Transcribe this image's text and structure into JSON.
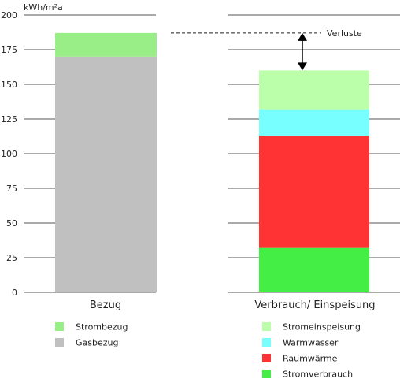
{
  "chart_data": {
    "type": "bar",
    "stacked": true,
    "ylabel": "kWh/m²a",
    "ylim": [
      0,
      200
    ],
    "yticks": [
      0,
      25,
      50,
      75,
      100,
      125,
      150,
      175,
      200
    ],
    "grid": true,
    "categories": [
      "Bezug",
      "Verbrauch/ Einspeisung"
    ],
    "series": [
      {
        "name": "Gasbezug",
        "category": "Bezug",
        "color": "#c0c0c0",
        "values": [
          170,
          0
        ]
      },
      {
        "name": "Strombezug",
        "category": "Bezug",
        "color": "#99ee88",
        "values": [
          17,
          0
        ]
      },
      {
        "name": "Stromverbrauch",
        "category": "Verbrauch/ Einspeisung",
        "color": "#44ee44",
        "values": [
          0,
          32
        ]
      },
      {
        "name": "Raumwärme",
        "category": "Verbrauch/ Einspeisung",
        "color": "#ff3333",
        "values": [
          0,
          81
        ]
      },
      {
        "name": "Warmwasser",
        "category": "Verbrauch/ Einspeisung",
        "color": "#77ffff",
        "values": [
          0,
          19
        ]
      },
      {
        "name": "Stromeinspeisung",
        "category": "Verbrauch/ Einspeisung",
        "color": "#bbffaa",
        "values": [
          0,
          28
        ]
      }
    ],
    "legends": [
      {
        "items": [
          "Strombezug",
          "Gasbezug"
        ]
      },
      {
        "items": [
          "Stromeinspeisung",
          "Warmwasser",
          "Raumwärme",
          "Stromverbrauch"
        ]
      }
    ],
    "annotation": {
      "label": "Verluste",
      "from": 187,
      "to": 160
    }
  }
}
